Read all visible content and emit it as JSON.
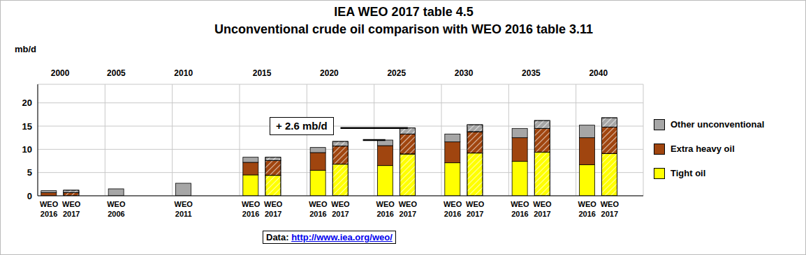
{
  "chart_data": {
    "type": "bar",
    "title": "IEA WEO 2017 table 4.5",
    "subtitle": "Unconventional crude oil comparison with WEO 2016 table 3.11",
    "y_label": "mb/d",
    "source": "Data: http://www.iea.org/weo/",
    "stacked": true,
    "grid": true,
    "legend": "right",
    "categories": [
      "WEO 2016",
      "WEO 2017",
      null,
      "WEO 2006",
      null,
      null,
      "WEO 2011",
      null,
      null,
      "WEO 2016",
      "WEO 2017",
      null,
      "WEO 2016",
      "WEO 2017",
      null,
      "WEO 2016",
      "WEO 2017",
      null,
      "WEO 2016",
      "WEO 2017",
      null,
      "WEO 2016",
      "WEO 2017",
      null,
      "WEO 2016",
      "WEO 2017",
      null
    ],
    "group_labels": [
      "2000",
      null,
      null,
      "2005",
      null,
      null,
      "2010",
      null,
      null,
      "2015",
      null,
      null,
      "2020",
      null,
      null,
      "2025",
      null,
      null,
      "2030",
      null,
      null,
      "2035",
      null,
      null,
      "2040",
      null,
      null
    ],
    "series": [
      {
        "name": "Tight oil",
        "color": "#ffff00",
        "values": [
          null,
          null,
          null,
          null,
          null,
          null,
          null,
          null,
          null,
          4.5,
          4.4,
          null,
          5.5,
          6.8,
          null,
          6.5,
          9.0,
          null,
          7.1,
          9.2,
          null,
          7.4,
          9.4,
          null,
          6.7,
          9.1,
          null
        ]
      },
      {
        "name": "Extra heavy oil",
        "color": "#a0450f",
        "values": [
          0.7,
          0.7,
          null,
          null,
          null,
          null,
          null,
          null,
          null,
          2.7,
          3.2,
          null,
          3.8,
          3.9,
          null,
          4.3,
          4.3,
          null,
          4.5,
          4.6,
          null,
          5.1,
          5.1,
          null,
          5.8,
          5.7,
          null
        ]
      },
      {
        "name": "Other unconventional",
        "color": "#a6a6a6",
        "values": [
          0.4,
          0.5,
          null,
          1.5,
          null,
          null,
          2.7,
          null,
          null,
          1.1,
          0.7,
          null,
          1.1,
          1.0,
          null,
          1.2,
          1.3,
          null,
          1.7,
          1.5,
          null,
          2.0,
          1.7,
          null,
          2.7,
          2.0,
          null
        ]
      }
    ],
    "ylim": [
      0,
      24
    ],
    "yticks": [
      0,
      5,
      10,
      15,
      20
    ],
    "annotations": [
      {
        "text": "+ 2.6 mb/d",
        "group": "2025"
      }
    ]
  }
}
